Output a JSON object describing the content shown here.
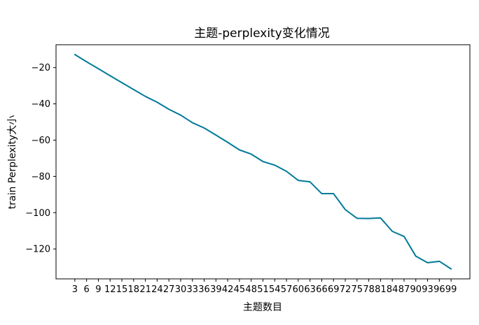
{
  "chart_data": {
    "type": "line",
    "title": "主题-perplexity变化情况",
    "xlabel": "主题数目",
    "ylabel": "train Perplexity大小",
    "x": [
      3,
      6,
      9,
      12,
      15,
      18,
      21,
      24,
      27,
      30,
      33,
      36,
      39,
      42,
      45,
      48,
      51,
      54,
      57,
      60,
      63,
      66,
      69,
      72,
      75,
      78,
      81,
      84,
      87,
      90,
      93,
      96,
      99
    ],
    "series": [
      {
        "color": "#007a99",
        "values": [
          -12.8,
          -16.8,
          -20.6,
          -24.5,
          -28.3,
          -32.1,
          -35.9,
          -39.1,
          -43.0,
          -46.2,
          -50.4,
          -53.3,
          -57.2,
          -61.2,
          -65.4,
          -67.7,
          -71.8,
          -73.8,
          -77.2,
          -82.2,
          -83.0,
          -89.5,
          -89.5,
          -98.3,
          -103.1,
          -103.2,
          -102.9,
          -110.3,
          -113.1,
          -124.0,
          -127.6,
          -126.8,
          -131.0
        ]
      }
    ],
    "xticks": [
      "3",
      "6",
      "9",
      "12",
      "15",
      "18",
      "21",
      "24",
      "27",
      "30",
      "33",
      "36",
      "39",
      "42",
      "45",
      "48",
      "51",
      "54",
      "57",
      "60",
      "63",
      "66",
      "69",
      "72",
      "75",
      "78",
      "81",
      "84",
      "87",
      "90",
      "93",
      "96",
      "99"
    ],
    "yticks": [
      "−20",
      "−40",
      "−60",
      "−80",
      "−100",
      "−120"
    ],
    "ytick_values": [
      -20,
      -40,
      -60,
      -80,
      -100,
      -120
    ],
    "xlim": [
      -1.8,
      103.8
    ],
    "ylim": [
      -136.5,
      -7.4
    ],
    "grid": false,
    "legend": "none"
  }
}
